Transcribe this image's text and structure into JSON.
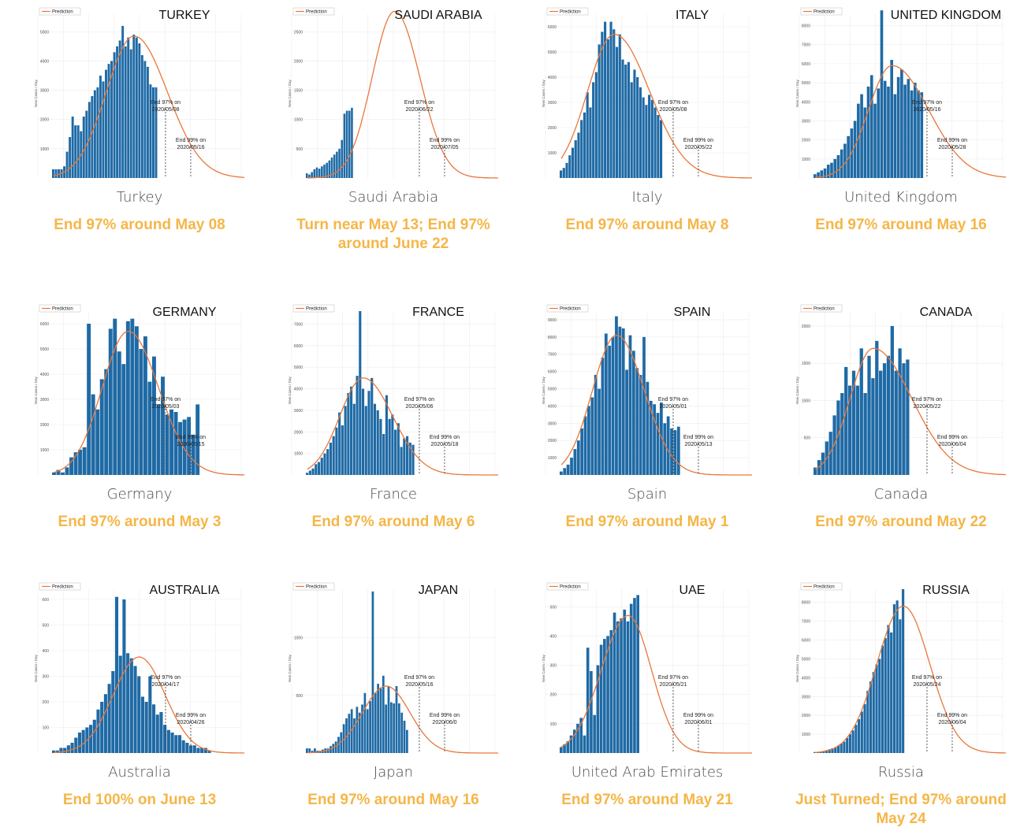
{
  "legend_label": "Prediction",
  "ylabel": "New Cases / Day",
  "colors": {
    "bar": "#1f6aa5",
    "curve": "#e9773a",
    "note": "#f5b648",
    "caption": "#4a4a4a"
  },
  "panels": [
    {
      "title": "TURKEY",
      "caption": "Turkey",
      "note": "End 97% around May 08",
      "end97": "End 97% on",
      "end97_date": "2020/05/08",
      "end99": "End 99% on",
      "end99_date": "2020/05/16"
    },
    {
      "title": "SAUDI ARABIA",
      "caption": "Saudi Arabia",
      "note": "Turn near May 13; End 97% around June 22",
      "end97": "End 97% on",
      "end97_date": "2020/06/22",
      "end99": "End 99% on",
      "end99_date": "2020/07/05"
    },
    {
      "title": "ITALY",
      "caption": "Italy",
      "note": "End 97% around May 8",
      "end97": "End 97% on",
      "end97_date": "2020/05/08",
      "end99": "End 99% on",
      "end99_date": "2020/05/22"
    },
    {
      "title": "UNITED KINGDOM",
      "caption": "United Kingdom",
      "note": "End 97% around May 16",
      "end97": "End 97% on",
      "end97_date": "2020/05/16",
      "end99": "End 99% on",
      "end99_date": "2020/05/28"
    },
    {
      "title": "GERMANY",
      "caption": "Germany",
      "note": "End 97% around May 3",
      "end97": "End 97% on",
      "end97_date": "2020/05/03",
      "end99": "End 99% on",
      "end99_date": "2020/05/15"
    },
    {
      "title": "FRANCE",
      "caption": "France",
      "note": "End 97% around May 6",
      "end97": "End 97% on",
      "end97_date": "2020/05/06",
      "end99": "End 99% on",
      "end99_date": "2020/05/18"
    },
    {
      "title": "SPAIN",
      "caption": "Spain",
      "note": "End 97% around May 1",
      "end97": "End 97% on",
      "end97_date": "2020/05/01",
      "end99": "End 99% on",
      "end99_date": "2020/05/13"
    },
    {
      "title": "CANADA",
      "caption": "Canada",
      "note": "End 97% around May 22",
      "end97": "End 97% on",
      "end97_date": "2020/05/22",
      "end99": "End 99% on",
      "end99_date": "2020/06/04"
    },
    {
      "title": "AUSTRALIA",
      "caption": "Australia",
      "note": "End 100% on June 13",
      "end97": "End 97% on",
      "end97_date": "2020/04/17",
      "end99": "End 99% on",
      "end99_date": "2020/04/26"
    },
    {
      "title": "JAPAN",
      "caption": "Japan",
      "note": "End 97% around May 16",
      "end97": "End 97% on",
      "end97_date": "2020/05/16",
      "end99": "End 99% on",
      "end99_date": "2020/06/0"
    },
    {
      "title": "UAE",
      "caption": "United Arab Emirates",
      "note": "End 97% around May 21",
      "end97": "End 97% on",
      "end97_date": "2020/05/21",
      "end99": "End 99% on",
      "end99_date": "2020/06/01"
    },
    {
      "title": "RUSSIA",
      "caption": "Russia",
      "note": "Just Turned; End 97% around May 24",
      "end97": "End 97% on",
      "end97_date": "2020/05/24",
      "end99": "End 99% on",
      "end99_date": "2020/06/04"
    }
  ],
  "chart_data": [
    {
      "type": "bar",
      "title": "TURKEY",
      "ylabel": "New Cases / Day",
      "yticks": [
        1000,
        2000,
        3000,
        4000,
        5000
      ],
      "ylim": [
        0,
        5600
      ],
      "values": [
        300,
        300,
        300,
        300,
        400,
        900,
        1400,
        2100,
        1800,
        1800,
        1600,
        2100,
        2300,
        2600,
        2800,
        3000,
        3100,
        3500,
        3300,
        3700,
        3900,
        4000,
        4300,
        4500,
        4700,
        5200,
        4500,
        4800,
        4400,
        4900,
        4800,
        4600,
        4200,
        4000,
        3800,
        3200,
        3100,
        3100
      ],
      "prediction": {
        "peak": 4850,
        "peak_index": 29,
        "sigma_left": 10,
        "sigma_right": 12,
        "length": 72
      }
    },
    {
      "type": "bar",
      "title": "SAUDI ARABIA",
      "ylabel": "New Cases / Day",
      "yticks": [
        500,
        1000,
        1500,
        2000,
        2500
      ],
      "ylim": [
        0,
        2800
      ],
      "values": [
        80,
        60,
        100,
        150,
        180,
        160,
        200,
        230,
        260,
        300,
        350,
        400,
        450,
        500,
        650,
        1100,
        1150,
        1150,
        1200
      ],
      "prediction": {
        "peak": 2850,
        "peak_index": 35,
        "sigma_left": 9,
        "sigma_right": 10,
        "length": 80
      }
    },
    {
      "type": "bar",
      "title": "ITALY",
      "ylabel": "New Cases / Day",
      "yticks": [
        1000,
        2000,
        3000,
        4000,
        5000,
        6000
      ],
      "ylim": [
        0,
        6500
      ],
      "values": [
        300,
        400,
        600,
        900,
        1200,
        1500,
        1800,
        2300,
        2600,
        3400,
        2800,
        3800,
        4200,
        5300,
        5800,
        6200,
        5500,
        6200,
        5900,
        5200,
        5700,
        4700,
        4500,
        4600,
        3800,
        4300,
        4000,
        3600,
        3200,
        2900,
        3300,
        3100,
        2800,
        2500,
        2300
      ],
      "prediction": {
        "peak": 5700,
        "peak_index": 18,
        "sigma_left": 9,
        "sigma_right": 12,
        "length": 68
      }
    },
    {
      "type": "bar",
      "title": "UNITED KINGDOM",
      "ylabel": "New Cases / Day",
      "yticks": [
        1000,
        2000,
        3000,
        4000,
        5000,
        6000,
        7000,
        8000
      ],
      "ylim": [
        0,
        8600
      ],
      "values": [
        200,
        300,
        400,
        500,
        700,
        800,
        1000,
        1200,
        1500,
        1800,
        2200,
        2600,
        3000,
        3900,
        4400,
        3700,
        4800,
        5400,
        3900,
        4700,
        8800,
        5100,
        4800,
        6200,
        4400,
        5300,
        5700,
        4900,
        5200,
        4600,
        5000,
        4600,
        4500
      ],
      "prediction": {
        "peak": 5900,
        "peak_index": 23,
        "sigma_left": 7,
        "sigma_right": 11,
        "length": 60
      }
    },
    {
      "type": "bar",
      "title": "GERMANY",
      "ylabel": "New Cases / Day",
      "yticks": [
        1000,
        2000,
        3000,
        4000,
        5000,
        6000
      ],
      "ylim": [
        0,
        6500
      ],
      "values": [
        100,
        200,
        100,
        300,
        700,
        900,
        1000,
        1100,
        6000,
        3200,
        2600,
        3800,
        4200,
        5800,
        6200,
        4900,
        4400,
        6100,
        6200,
        5900,
        5000,
        5500,
        3700,
        4700,
        2800,
        3900,
        2400,
        2600,
        2500,
        2100,
        2200,
        2300,
        1600,
        2800
      ],
      "prediction": {
        "peak": 5700,
        "peak_index": 17,
        "sigma_left": 6,
        "sigma_right": 7,
        "length": 46
      }
    },
    {
      "type": "bar",
      "title": "FRANCE",
      "ylabel": "New Cases / Day",
      "yticks": [
        1000,
        2000,
        3000,
        4000,
        5000,
        6000,
        7000
      ],
      "ylim": [
        0,
        7600
      ],
      "values": [
        100,
        200,
        300,
        500,
        600,
        800,
        1000,
        1200,
        1500,
        1800,
        2200,
        2900,
        2300,
        3200,
        3800,
        4100,
        3300,
        4600,
        7600,
        4000,
        3200,
        3900,
        4500,
        3300,
        3000,
        2600,
        1900,
        3700,
        2600,
        2800,
        2100,
        2400,
        1300,
        1700,
        1800,
        1500,
        1400
      ],
      "prediction": {
        "peak": 4500,
        "peak_index": 19,
        "sigma_left": 8,
        "sigma_right": 10,
        "length": 68
      }
    },
    {
      "type": "bar",
      "title": "SPAIN",
      "ylabel": "New Cases / Day",
      "yticks": [
        1000,
        2000,
        3000,
        4000,
        5000,
        6000,
        7000,
        8000,
        9000
      ],
      "ylim": [
        0,
        9500
      ],
      "values": [
        200,
        400,
        600,
        1000,
        1500,
        2000,
        2700,
        3400,
        4000,
        4500,
        5800,
        5000,
        6800,
        8200,
        7500,
        8000,
        9200,
        8600,
        8500,
        6100,
        8100,
        7200,
        6200,
        5800,
        8000,
        5400,
        4300,
        4100,
        3600,
        4200,
        3000,
        3400,
        2700,
        2600,
        2800
      ],
      "prediction": {
        "peak": 8100,
        "peak_index": 16,
        "sigma_left": 7,
        "sigma_right": 8,
        "length": 58
      }
    },
    {
      "type": "bar",
      "title": "CANADA",
      "ylabel": "New Cases / Day",
      "yticks": [
        500,
        1000,
        1500,
        2000
      ],
      "ylim": [
        0,
        2200
      ],
      "values": [
        100,
        200,
        300,
        450,
        580,
        800,
        1000,
        1100,
        1450,
        1200,
        1400,
        1200,
        1700,
        1100,
        1600,
        1300,
        1800,
        1400,
        1500,
        1600,
        2000,
        1400,
        1700,
        1500,
        1550
      ],
      "prediction": {
        "peak": 1700,
        "peak_index": 15,
        "sigma_left": 6,
        "sigma_right": 10,
        "length": 52
      }
    },
    {
      "type": "bar",
      "title": "AUSTRALIA",
      "ylabel": "New Cases / Day",
      "yticks": [
        100,
        200,
        300,
        400,
        500,
        600
      ],
      "ylim": [
        0,
        640
      ],
      "values": [
        10,
        10,
        20,
        20,
        30,
        40,
        60,
        80,
        90,
        100,
        110,
        130,
        170,
        200,
        230,
        270,
        320,
        610,
        380,
        600,
        390,
        370,
        340,
        300,
        220,
        200,
        300,
        190,
        150,
        160,
        110,
        90,
        80,
        70,
        70,
        50,
        40,
        30,
        30,
        20,
        20,
        20,
        10
      ],
      "prediction": {
        "peak": 375,
        "peak_index": 23,
        "sigma_left": 7,
        "sigma_right": 7,
        "length": 54
      }
    },
    {
      "type": "bar",
      "title": "JAPAN",
      "ylabel": "New Cases / Day",
      "yticks": [
        500,
        1000
      ],
      "ylim": [
        0,
        1420
      ],
      "values": [
        40,
        40,
        20,
        40,
        20,
        20,
        30,
        40,
        40,
        60,
        80,
        100,
        140,
        180,
        250,
        300,
        340,
        380,
        300,
        400,
        350,
        420,
        520,
        380,
        450,
        1400,
        520,
        600,
        560,
        670,
        420,
        580,
        440,
        430,
        580,
        430,
        350,
        280,
        200
      ],
      "prediction": {
        "peak": 580,
        "peak_index": 30,
        "sigma_left": 9,
        "sigma_right": 9,
        "length": 76
      }
    },
    {
      "type": "bar",
      "title": "UAE",
      "ylabel": "New Cases / Day",
      "yticks": [
        100,
        200,
        300,
        400,
        500
      ],
      "ylim": [
        0,
        560
      ],
      "values": [
        20,
        30,
        40,
        60,
        80,
        100,
        120,
        60,
        360,
        280,
        130,
        300,
        370,
        390,
        400,
        420,
        480,
        450,
        460,
        490,
        450,
        510,
        530,
        540
      ],
      "prediction": {
        "peak": 470,
        "peak_index": 20,
        "sigma_left": 8,
        "sigma_right": 7,
        "length": 60
      }
    },
    {
      "type": "bar",
      "title": "RUSSIA",
      "ylabel": "New Cases / Day",
      "yticks": [
        1000,
        2000,
        3000,
        4000,
        5000,
        6000,
        7000,
        8000
      ],
      "ylim": [
        0,
        8700
      ],
      "values": [
        50,
        60,
        80,
        100,
        150,
        200,
        250,
        300,
        400,
        500,
        600,
        800,
        1000,
        1200,
        1500,
        1800,
        2200,
        2600,
        3300,
        3800,
        4300,
        4700,
        5000,
        5700,
        6100,
        6800,
        6400,
        7900,
        8100,
        7100,
        8700
      ],
      "prediction": {
        "peak": 7800,
        "peak_index": 30,
        "sigma_left": 9,
        "sigma_right": 9,
        "length": 68
      }
    }
  ]
}
